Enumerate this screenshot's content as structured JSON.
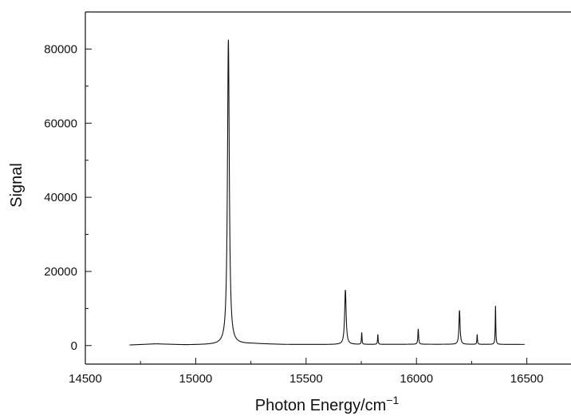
{
  "chart_data": {
    "type": "line",
    "title": "",
    "xlabel": "Photon Energy/cm",
    "xlabel_superscript": "−1",
    "ylabel": "Signal",
    "xlim": [
      14500,
      16700
    ],
    "ylim": [
      -5000,
      90000
    ],
    "xticks": [
      14500,
      15000,
      15500,
      16000,
      16500
    ],
    "yticks": [
      0,
      20000,
      40000,
      60000,
      80000
    ],
    "grid": false,
    "series": [
      {
        "line_color": "#111111",
        "baseline": {
          "x_start": 14700,
          "x_end": 16490,
          "values": [
            [
              14700,
              150
            ],
            [
              14820,
              450
            ],
            [
              14950,
              200
            ],
            [
              15100,
              250
            ],
            [
              15260,
              500
            ],
            [
              15400,
              300
            ],
            [
              15600,
              280
            ],
            [
              16000,
              350
            ],
            [
              16490,
              300
            ]
          ]
        },
        "peaks": [
          {
            "x": 15148,
            "y": 82500,
            "width": 5
          },
          {
            "x": 15678,
            "y": 15000,
            "width": 4
          },
          {
            "x": 15752,
            "y": 3500,
            "width": 1.5
          },
          {
            "x": 15825,
            "y": 3000,
            "width": 1.5
          },
          {
            "x": 16008,
            "y": 4500,
            "width": 2
          },
          {
            "x": 16195,
            "y": 9500,
            "width": 3
          },
          {
            "x": 16275,
            "y": 3000,
            "width": 1.5
          },
          {
            "x": 16358,
            "y": 10700,
            "width": 1.5
          }
        ]
      }
    ]
  }
}
